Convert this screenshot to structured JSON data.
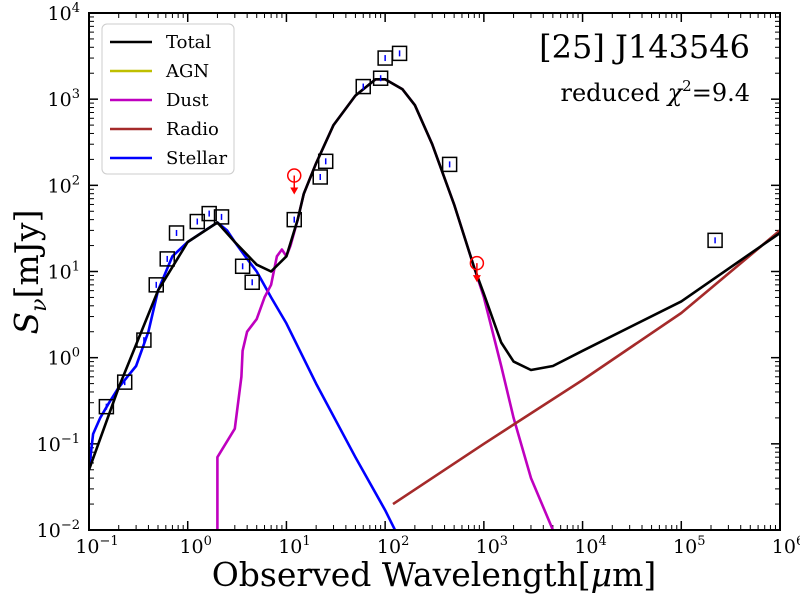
{
  "chart_data": {
    "type": "line",
    "scale": {
      "x": "log",
      "y": "log"
    },
    "xlim": [
      0.1,
      1000000
    ],
    "ylim": [
      0.01,
      10000
    ],
    "title": "[25] J143546",
    "subtitle": {
      "prefix": "reduced ",
      "chi": "χ",
      "sup": "2",
      "suffix": "=9.4"
    },
    "xlabel": {
      "main": "Observed Wavelength[",
      "mu": "μ",
      "unit": "m]"
    },
    "ylabel": {
      "S": "S",
      "sub": "ν",
      "unit": "[mJy]"
    },
    "x_ticks": [
      {
        "value": 0.1,
        "base": "10",
        "exp": "−1"
      },
      {
        "value": 1,
        "base": "10",
        "exp": "0"
      },
      {
        "value": 10,
        "base": "10",
        "exp": "1"
      },
      {
        "value": 100,
        "base": "10",
        "exp": "2"
      },
      {
        "value": 1000,
        "base": "10",
        "exp": "3"
      },
      {
        "value": 10000,
        "base": "10",
        "exp": "4"
      },
      {
        "value": 100000,
        "base": "10",
        "exp": "5"
      },
      {
        "value": 1000000,
        "base": "10",
        "exp": "6"
      }
    ],
    "y_ticks": [
      {
        "value": 0.01,
        "base": "10",
        "exp": "−2"
      },
      {
        "value": 0.1,
        "base": "10",
        "exp": "−1"
      },
      {
        "value": 1,
        "base": "10",
        "exp": "0"
      },
      {
        "value": 10,
        "base": "10",
        "exp": "1"
      },
      {
        "value": 100,
        "base": "10",
        "exp": "2"
      },
      {
        "value": 1000,
        "base": "10",
        "exp": "3"
      },
      {
        "value": 10000,
        "base": "10",
        "exp": "4"
      }
    ],
    "legend": {
      "position": "top-left",
      "entries": [
        {
          "label": "Total",
          "color": "#000000"
        },
        {
          "label": "AGN",
          "color": "#bfbf00"
        },
        {
          "label": "Dust",
          "color": "#bf00bf"
        },
        {
          "label": "Radio",
          "color": "#a52a2a"
        },
        {
          "label": "Stellar",
          "color": "#0000ff"
        }
      ]
    },
    "series": [
      {
        "name": "Stellar",
        "color": "#0000ff",
        "points": [
          [
            0.1,
            0.05
          ],
          [
            0.11,
            0.13
          ],
          [
            0.13,
            0.2
          ],
          [
            0.16,
            0.3
          ],
          [
            0.2,
            0.45
          ],
          [
            0.3,
            0.8
          ],
          [
            0.4,
            2
          ],
          [
            0.5,
            6
          ],
          [
            0.7,
            15
          ],
          [
            1,
            22
          ],
          [
            1.5,
            30
          ],
          [
            2,
            37
          ],
          [
            2.5,
            30
          ],
          [
            3,
            22
          ],
          [
            4,
            14
          ],
          [
            5,
            10
          ],
          [
            7,
            5
          ],
          [
            10,
            2.5
          ],
          [
            20,
            0.5
          ],
          [
            50,
            0.07
          ],
          [
            100,
            0.017
          ],
          [
            170,
            0.005
          ]
        ]
      },
      {
        "name": "Dust",
        "color": "#bf00bf",
        "points": [
          [
            2,
            0.01
          ],
          [
            2,
            0.07
          ],
          [
            3,
            0.15
          ],
          [
            3.5,
            0.6
          ],
          [
            3.6,
            1.2
          ],
          [
            4,
            2
          ],
          [
            5,
            2.8
          ],
          [
            6,
            5
          ],
          [
            7,
            7
          ],
          [
            8,
            15
          ],
          [
            9,
            18
          ],
          [
            10,
            15
          ],
          [
            11,
            20
          ],
          [
            13,
            40
          ],
          [
            15,
            80
          ],
          [
            20,
            180
          ],
          [
            30,
            500
          ],
          [
            50,
            1100
          ],
          [
            80,
            1700
          ],
          [
            100,
            1700
          ],
          [
            150,
            1300
          ],
          [
            200,
            850
          ],
          [
            300,
            300
          ],
          [
            500,
            60
          ],
          [
            800,
            11
          ],
          [
            1000,
            5
          ],
          [
            1500,
            0.8
          ],
          [
            2000,
            0.2
          ],
          [
            3000,
            0.04
          ],
          [
            5000,
            0.01
          ]
        ]
      },
      {
        "name": "Radio",
        "color": "#a52a2a",
        "points": [
          [
            120,
            0.02
          ],
          [
            1000,
            0.1
          ],
          [
            10000,
            0.55
          ],
          [
            100000,
            3.3
          ],
          [
            1000000,
            30
          ]
        ]
      },
      {
        "name": "Total",
        "color": "#000000",
        "points": [
          [
            0.1,
            0.05
          ],
          [
            0.2,
            0.45
          ],
          [
            0.5,
            6
          ],
          [
            1,
            22
          ],
          [
            2,
            37
          ],
          [
            3,
            22
          ],
          [
            5,
            12
          ],
          [
            7,
            10
          ],
          [
            10,
            15
          ],
          [
            13,
            40
          ],
          [
            15,
            80
          ],
          [
            20,
            180
          ],
          [
            30,
            500
          ],
          [
            50,
            1100
          ],
          [
            80,
            1700
          ],
          [
            100,
            1700
          ],
          [
            150,
            1300
          ],
          [
            200,
            850
          ],
          [
            300,
            300
          ],
          [
            500,
            60
          ],
          [
            800,
            11
          ],
          [
            1000,
            5.5
          ],
          [
            1500,
            1.5
          ],
          [
            2000,
            0.9
          ],
          [
            3000,
            0.72
          ],
          [
            5000,
            0.8
          ],
          [
            10000,
            1.2
          ],
          [
            100000,
            4.5
          ],
          [
            1000000,
            28
          ]
        ]
      }
    ],
    "observations": [
      {
        "x": 0.15,
        "y": 0.27
      },
      {
        "x": 0.23,
        "y": 0.52
      },
      {
        "x": 0.36,
        "y": 1.6
      },
      {
        "x": 0.48,
        "y": 7
      },
      {
        "x": 0.62,
        "y": 14
      },
      {
        "x": 0.77,
        "y": 28
      },
      {
        "x": 1.25,
        "y": 38
      },
      {
        "x": 1.65,
        "y": 47
      },
      {
        "x": 2.2,
        "y": 43
      },
      {
        "x": 3.6,
        "y": 11.5
      },
      {
        "x": 4.5,
        "y": 7.5
      },
      {
        "x": 12,
        "y": 40
      },
      {
        "x": 22,
        "y": 125
      },
      {
        "x": 25,
        "y": 190
      },
      {
        "x": 60,
        "y": 1400
      },
      {
        "x": 90,
        "y": 1750
      },
      {
        "x": 100,
        "y": 3000
      },
      {
        "x": 140,
        "y": 3400
      },
      {
        "x": 450,
        "y": 175
      },
      {
        "x": 220000,
        "y": 23
      }
    ],
    "upper_limits": [
      {
        "x": 12,
        "y": 130
      },
      {
        "x": 850,
        "y": 12.5
      }
    ]
  }
}
